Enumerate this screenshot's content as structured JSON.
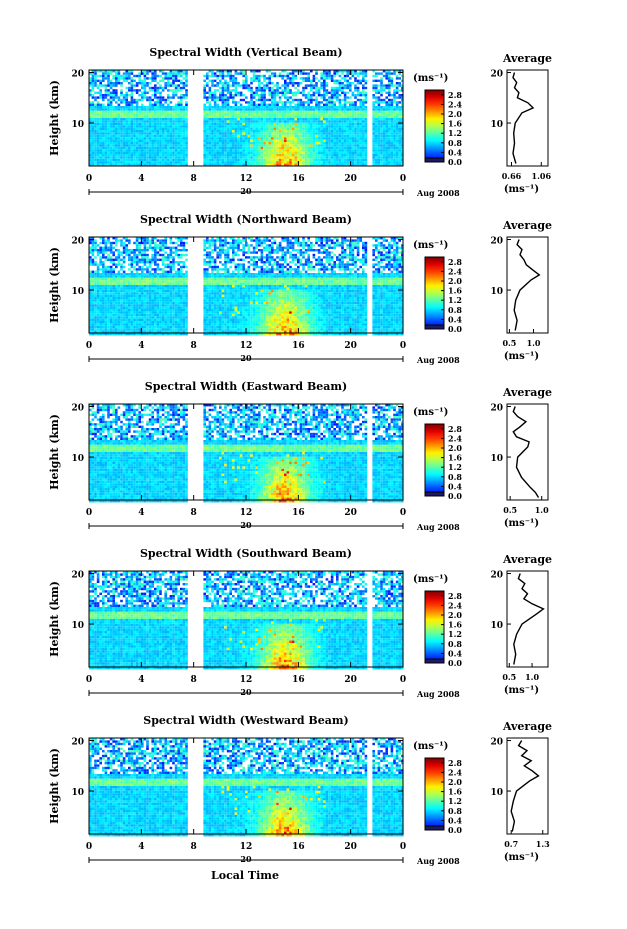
{
  "figure": {
    "xlabel_bottom": "Local Time",
    "date_label": "Aug 2008",
    "mid_day_label": "20",
    "y_axis_label": "Height (km)",
    "unit_label": "(ms⁻¹)",
    "avg_title": "Average"
  },
  "chart_data": [
    {
      "type": "heatmap",
      "title": "Spectral Width (Vertical Beam)",
      "x_ticks": [
        "0",
        "4",
        "8",
        "12",
        "16",
        "20",
        "0"
      ],
      "xlim": [
        0,
        24
      ],
      "y_ticks": [
        "10",
        "20"
      ],
      "ylim": [
        1.5,
        20.5
      ],
      "colorbar_ticks": [
        "0.0",
        "0.4",
        "0.8",
        "1.2",
        "1.6",
        "2.0",
        "2.4",
        "2.8"
      ],
      "colorbar_range": [
        0,
        3.0
      ],
      "data_gaps_hours": [
        [
          7.5,
          8.7
        ],
        [
          21.3,
          21.6
        ]
      ],
      "average_profile": {
        "title": "Average",
        "x_ticks": [
          "0.66",
          "1.06"
        ],
        "xlim": [
          0.6,
          1.15
        ],
        "ylim": [
          1.5,
          20.5
        ],
        "xlabel": "(ms⁻¹)",
        "height_km": [
          2,
          4,
          6,
          8,
          10,
          12,
          13,
          14,
          15,
          16,
          17,
          18,
          19,
          20
        ],
        "width_ms": [
          0.72,
          0.68,
          0.7,
          0.69,
          0.71,
          0.8,
          0.95,
          0.88,
          0.74,
          0.76,
          0.7,
          0.73,
          0.68,
          0.7
        ]
      }
    },
    {
      "type": "heatmap",
      "title": "Spectral Width (Northward Beam)",
      "x_ticks": [
        "0",
        "4",
        "8",
        "12",
        "16",
        "20",
        "0"
      ],
      "xlim": [
        0,
        24
      ],
      "y_ticks": [
        "10",
        "20"
      ],
      "ylim": [
        1.5,
        20.5
      ],
      "colorbar_ticks": [
        "0.0",
        "0.4",
        "0.8",
        "1.2",
        "1.6",
        "2.0",
        "2.4",
        "2.8"
      ],
      "colorbar_range": [
        0,
        3.0
      ],
      "data_gaps_hours": [
        [
          7.5,
          8.7
        ],
        [
          21.3,
          21.6
        ]
      ],
      "average_profile": {
        "title": "Average",
        "x_ticks": [
          "0.5",
          "1.0"
        ],
        "xlim": [
          0.45,
          1.3
        ],
        "ylim": [
          1.5,
          20.5
        ],
        "xlabel": "(ms⁻¹)",
        "height_km": [
          2,
          4,
          6,
          8,
          10,
          12,
          13,
          14,
          15,
          16,
          17,
          18,
          19,
          20
        ],
        "width_ms": [
          0.62,
          0.66,
          0.6,
          0.63,
          0.72,
          0.95,
          1.12,
          0.98,
          0.85,
          0.8,
          0.72,
          0.76,
          0.66,
          0.7
        ]
      }
    },
    {
      "type": "heatmap",
      "title": "Spectral Width (Eastward Beam)",
      "x_ticks": [
        "0",
        "4",
        "8",
        "12",
        "16",
        "20",
        "0"
      ],
      "xlim": [
        0,
        24
      ],
      "y_ticks": [
        "10",
        "20"
      ],
      "ylim": [
        1.5,
        20.5
      ],
      "colorbar_ticks": [
        "0.0",
        "0.4",
        "0.8",
        "1.2",
        "1.6",
        "2.0",
        "2.4",
        "2.8"
      ],
      "colorbar_range": [
        0,
        3.0
      ],
      "data_gaps_hours": [
        [
          7.5,
          8.7
        ],
        [
          21.3,
          21.6
        ]
      ],
      "average_profile": {
        "title": "Average",
        "x_ticks": [
          "0.5",
          "1.0"
        ],
        "xlim": [
          0.45,
          1.1
        ],
        "ylim": [
          1.5,
          20.5
        ],
        "xlabel": "(ms⁻¹)",
        "height_km": [
          2,
          3,
          4,
          6,
          8,
          10,
          12,
          13,
          14,
          15,
          16,
          17,
          18,
          19,
          20
        ],
        "width_ms": [
          0.95,
          0.9,
          0.82,
          0.68,
          0.6,
          0.62,
          0.78,
          0.8,
          0.6,
          0.55,
          0.66,
          0.75,
          0.62,
          0.55,
          0.58
        ]
      }
    },
    {
      "type": "heatmap",
      "title": "Spectral Width (Southward Beam)",
      "x_ticks": [
        "0",
        "4",
        "8",
        "12",
        "16",
        "20",
        "0"
      ],
      "xlim": [
        0,
        24
      ],
      "y_ticks": [
        "10",
        "20"
      ],
      "ylim": [
        1.5,
        20.5
      ],
      "colorbar_ticks": [
        "0.0",
        "0.4",
        "0.8",
        "1.2",
        "1.6",
        "2.0",
        "2.4",
        "2.8"
      ],
      "colorbar_range": [
        0,
        3.0
      ],
      "data_gaps_hours": [
        [
          7.5,
          8.7
        ],
        [
          21.3,
          21.6
        ]
      ],
      "average_profile": {
        "title": "Average",
        "x_ticks": [
          "0.5",
          "1.0"
        ],
        "xlim": [
          0.45,
          1.35
        ],
        "ylim": [
          1.5,
          20.5
        ],
        "xlabel": "(ms⁻¹)",
        "height_km": [
          2,
          4,
          6,
          8,
          10,
          12,
          13,
          14,
          15,
          16,
          17,
          18,
          19,
          20
        ],
        "width_ms": [
          0.6,
          0.64,
          0.6,
          0.66,
          0.78,
          1.1,
          1.25,
          1.0,
          0.82,
          0.9,
          0.78,
          0.84,
          0.7,
          0.74
        ]
      }
    },
    {
      "type": "heatmap",
      "title": "Spectral Width (Westward Beam)",
      "x_ticks": [
        "0",
        "4",
        "8",
        "12",
        "16",
        "20",
        "0"
      ],
      "xlim": [
        0,
        24
      ],
      "y_ticks": [
        "10",
        "20"
      ],
      "ylim": [
        1.5,
        20.5
      ],
      "colorbar_ticks": [
        "0.0",
        "0.4",
        "0.8",
        "1.2",
        "1.6",
        "2.0",
        "2.4",
        "2.8"
      ],
      "colorbar_range": [
        0,
        3.0
      ],
      "data_gaps_hours": [
        [
          7.5,
          8.7
        ],
        [
          21.3,
          21.6
        ]
      ],
      "average_profile": {
        "title": "Average",
        "x_ticks": [
          "0.7",
          "1.3"
        ],
        "xlim": [
          0.62,
          1.4
        ],
        "ylim": [
          1.5,
          20.5
        ],
        "xlabel": "(ms⁻¹)",
        "height_km": [
          2,
          4,
          6,
          8,
          10,
          12,
          13,
          14,
          15,
          16,
          17,
          18,
          19,
          20
        ],
        "width_ms": [
          0.72,
          0.76,
          0.7,
          0.74,
          0.8,
          1.05,
          1.22,
          1.1,
          0.95,
          1.08,
          0.9,
          1.0,
          0.84,
          0.9
        ]
      }
    }
  ]
}
